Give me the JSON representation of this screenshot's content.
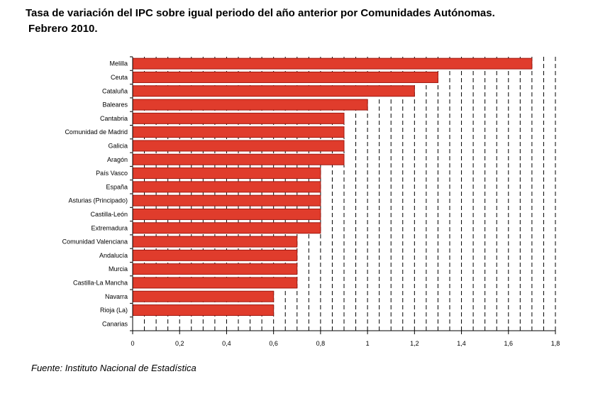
{
  "title": {
    "line1": "Tasa de variación del IPC sobre igual periodo del año anterior por Comunidades Autónomas.",
    "line2": "Febrero 2010."
  },
  "source": "Fuente: Instituto Nacional de Estadística",
  "chart_data": {
    "type": "bar",
    "orientation": "horizontal",
    "categories": [
      "Melilla",
      "Ceuta",
      "Cataluña",
      "Baleares",
      "Cantabria",
      "Comunidad de Madrid",
      "Galicia",
      "Aragón",
      "País Vasco",
      "España",
      "Asturias (Principado)",
      "Castilla-León",
      "Extremadura",
      "Comunidad Valenciana",
      "Andalucía",
      "Murcia",
      "Castilla-La Mancha",
      "Navarra",
      "Rioja (La)",
      "Canarias"
    ],
    "values": [
      1.7,
      1.3,
      1.2,
      1.0,
      0.9,
      0.9,
      0.9,
      0.9,
      0.8,
      0.8,
      0.8,
      0.8,
      0.8,
      0.7,
      0.7,
      0.7,
      0.7,
      0.6,
      0.6,
      0.0
    ],
    "xlim": [
      0,
      1.8
    ],
    "xticks": [
      0,
      0.2,
      0.4,
      0.6,
      0.8,
      1.0,
      1.2,
      1.4,
      1.6,
      1.8
    ],
    "xtick_labels": [
      "0",
      "0,2",
      "0,4",
      "0,6",
      "0,8",
      "1",
      "1,2",
      "1,4",
      "1,6",
      "1,8"
    ],
    "grid": "vertical dashed",
    "bar_color": "#e03c2c",
    "bar_edge_color": "#a01810"
  }
}
